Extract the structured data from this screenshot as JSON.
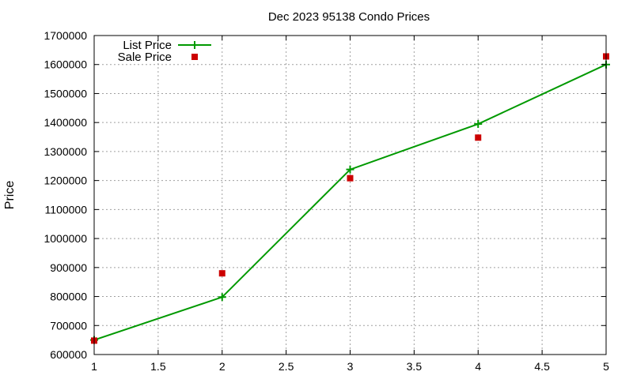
{
  "chart_data": {
    "type": "line",
    "title": "Dec 2023 95138 Condo Prices",
    "xlabel": "",
    "ylabel": "Price",
    "xlim": [
      1,
      5
    ],
    "ylim": [
      600000,
      1700000
    ],
    "x_ticks": [
      "1",
      "1.5",
      "2",
      "2.5",
      "3",
      "3.5",
      "4",
      "4.5",
      "5"
    ],
    "y_ticks": [
      "600000",
      "700000",
      "800000",
      "900000",
      "1000000",
      "1100000",
      "1200000",
      "1300000",
      "1400000",
      "1500000",
      "1600000",
      "1700000"
    ],
    "grid": true,
    "legend_position": "top-left",
    "series": [
      {
        "name": "List Price",
        "style": "lines+points",
        "marker": "plus",
        "color": "#009900",
        "x": [
          1,
          2,
          3,
          4,
          5
        ],
        "y": [
          650000,
          798000,
          1238000,
          1395000,
          1600000
        ]
      },
      {
        "name": "Sale Price",
        "style": "points",
        "marker": "square",
        "color": "#cc0000",
        "x": [
          1,
          2,
          3,
          4,
          5
        ],
        "y": [
          648000,
          880000,
          1208000,
          1348000,
          1628000
        ]
      }
    ]
  }
}
